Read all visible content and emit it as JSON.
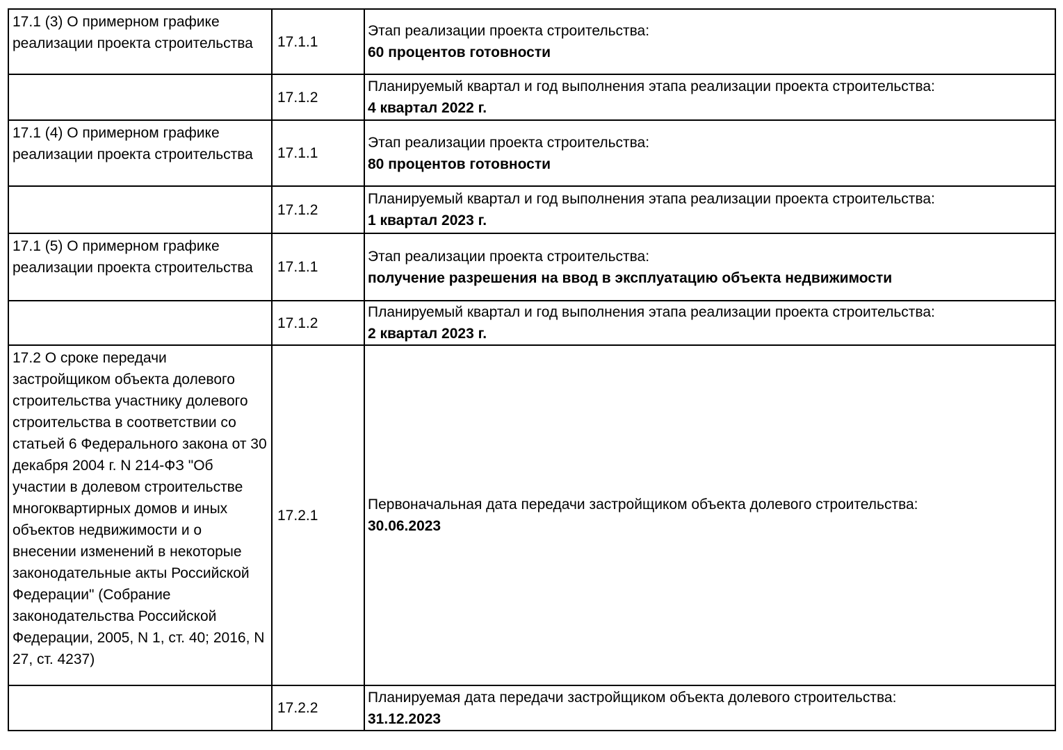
{
  "document": {
    "language": "ru",
    "type": "project-declaration-table"
  },
  "colors": {
    "background": "#ffffff",
    "border": "#000000",
    "text": "#000000"
  },
  "table": {
    "columns": [
      "section",
      "item_number",
      "content"
    ],
    "rows": [
      {
        "section": "17.1 (3) О примерном графике реализации проекта строительства",
        "item": "17.1.1",
        "label": "Этап реализации проекта строительства:",
        "value": "60 процентов готовности"
      },
      {
        "section": "",
        "item": "17.1.2",
        "label": "Планируемый квартал и год выполнения этапа реализации проекта строительства:",
        "value": "4 квартал 2022 г."
      },
      {
        "section": "17.1 (4) О примерном графике реализации проекта строительства",
        "item": "17.1.1",
        "label": "Этап реализации проекта строительства:",
        "value": "80 процентов готовности"
      },
      {
        "section": "",
        "item": "17.1.2",
        "label": "Планируемый квартал и год выполнения этапа реализации проекта строительства:",
        "value": "1 квартал 2023 г."
      },
      {
        "section": "17.1 (5) О примерном графике реализации проекта строительства",
        "item": "17.1.1",
        "label": "Этап реализации проекта строительства:",
        "value": "получение разрешения на ввод в эксплуатацию объекта недвижимости"
      },
      {
        "section": "",
        "item": "17.1.2",
        "label": "Планируемый квартал и год выполнения этапа реализации проекта строительства:",
        "value": "2 квартал 2023 г."
      },
      {
        "section": "17.2 О сроке передачи застройщиком объекта долевого строительства участнику долевого строительства в соответствии со статьей 6 Федерального закона от 30 декабря 2004 г. N 214-ФЗ \"Об участии в долевом строительстве многоквартирных домов и иных объектов недвижимости и о внесении изменений в некоторые законодательные акты Российской Федерации\" (Собрание законодательства Российской Федерации, 2005, N 1, ст. 40; 2016, N 27, ст. 4237)",
        "item": "17.2.1",
        "label": "Первоначальная дата передачи застройщиком объекта долевого строительства:",
        "value": "30.06.2023"
      },
      {
        "section": "",
        "item": "17.2.2",
        "label": "Планируемая дата передачи застройщиком объекта долевого строительства:",
        "value": "31.12.2023"
      }
    ]
  }
}
